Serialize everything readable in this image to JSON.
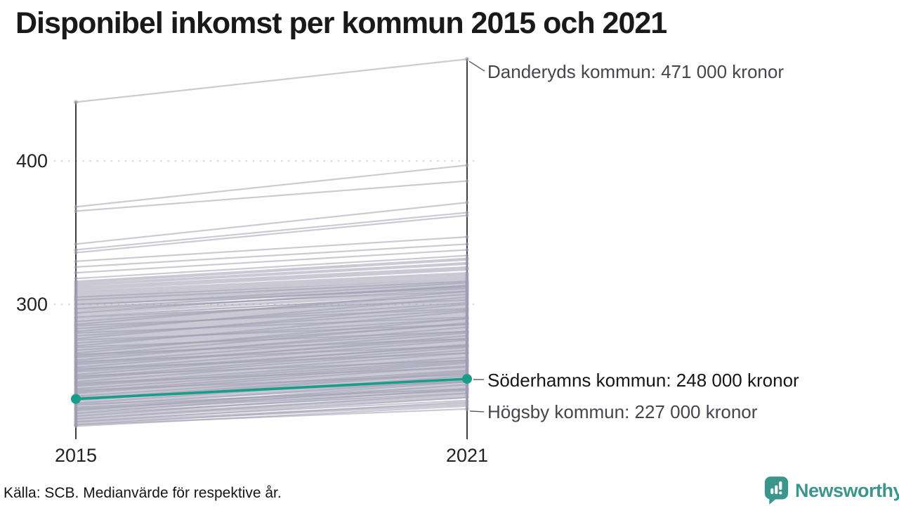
{
  "title": "Disponibel inkomst per kommun 2015 och 2021",
  "footer": {
    "source_text": "Källa: SCB. Medianvärde för respektive år."
  },
  "logo": {
    "name": "Newsworthy",
    "color": "#3a968c"
  },
  "colors": {
    "highlight": "#189e88",
    "background_line": "#a19fb2",
    "axis": "#111111",
    "gridline": "#d9d9de",
    "annotation_gray": "#45454e",
    "annotation_dark": "#15151b"
  },
  "chart_data": {
    "type": "line",
    "subtype": "slopegraph",
    "title": "Disponibel inkomst per kommun 2015 och 2021",
    "unit": "tusen kronor",
    "x": [
      2015,
      2021
    ],
    "x_labels": [
      "2015",
      "2021"
    ],
    "y_ticks": [
      {
        "value": 400,
        "label": "400"
      },
      {
        "value": 300,
        "label": "300"
      }
    ],
    "ylim": [
      215,
      475
    ],
    "grid": "dotted-horizontal",
    "legend_position": "none",
    "highlight_series": {
      "name": "Söderhamns kommun",
      "values": [
        234,
        248
      ],
      "label": "Söderhamns kommun: 248 000 kronor",
      "color": "#189e88"
    },
    "annotated_series": [
      {
        "name": "Danderyds kommun",
        "values": [
          441,
          471
        ],
        "label": "Danderyds kommun: 471 000 kronor"
      },
      {
        "name": "Högsby kommun",
        "values": [
          216,
          227
        ],
        "label": "Högsby kommun: 227 000 kronor"
      }
    ],
    "background_series": [
      [
        368,
        397
      ],
      [
        365,
        386
      ],
      [
        342,
        371
      ],
      [
        338,
        364
      ],
      [
        336,
        362
      ],
      [
        330,
        347
      ],
      [
        326,
        342
      ],
      [
        322,
        338
      ],
      [
        318,
        334
      ],
      [
        316,
        332
      ],
      [
        315,
        331
      ],
      [
        314,
        329
      ],
      [
        313,
        328
      ],
      [
        312,
        326
      ],
      [
        311,
        325
      ],
      [
        310,
        324
      ],
      [
        309,
        322
      ],
      [
        308,
        321
      ],
      [
        307,
        320
      ],
      [
        306,
        319
      ],
      [
        305,
        318
      ],
      [
        305,
        317
      ],
      [
        304,
        316
      ],
      [
        303,
        316
      ],
      [
        303,
        315
      ],
      [
        302,
        314
      ],
      [
        301,
        313
      ],
      [
        300,
        312
      ],
      [
        300,
        311
      ],
      [
        299,
        315
      ],
      [
        298,
        312
      ],
      [
        297,
        313
      ],
      [
        296,
        310
      ],
      [
        295,
        311
      ],
      [
        294,
        309
      ],
      [
        293,
        308
      ],
      [
        292,
        306
      ],
      [
        291,
        307
      ],
      [
        290,
        305
      ],
      [
        289,
        304
      ],
      [
        288,
        303
      ],
      [
        287,
        302
      ],
      [
        286,
        301
      ],
      [
        285,
        300
      ],
      [
        284,
        299
      ],
      [
        283,
        298
      ],
      [
        282,
        297
      ],
      [
        281,
        296
      ],
      [
        280,
        295
      ],
      [
        279,
        294
      ],
      [
        278,
        293
      ],
      [
        277,
        292
      ],
      [
        276,
        291
      ],
      [
        275,
        290
      ],
      [
        274,
        289
      ],
      [
        273,
        288
      ],
      [
        272,
        287
      ],
      [
        271,
        286
      ],
      [
        270,
        285
      ],
      [
        269,
        284
      ],
      [
        268,
        283
      ],
      [
        267,
        282
      ],
      [
        266,
        281
      ],
      [
        265,
        280
      ],
      [
        264,
        279
      ],
      [
        263,
        278
      ],
      [
        262,
        277
      ],
      [
        261,
        276
      ],
      [
        260,
        275
      ],
      [
        259,
        274
      ],
      [
        258,
        273
      ],
      [
        257,
        272
      ],
      [
        256,
        271
      ],
      [
        255,
        270
      ],
      [
        254,
        269
      ],
      [
        253,
        268
      ],
      [
        252,
        267
      ],
      [
        251,
        266
      ],
      [
        250,
        265
      ],
      [
        249,
        264
      ],
      [
        248,
        263
      ],
      [
        247,
        262
      ],
      [
        246,
        261
      ],
      [
        245,
        260
      ],
      [
        244,
        259
      ],
      [
        243,
        258
      ],
      [
        242,
        257
      ],
      [
        241,
        256
      ],
      [
        240,
        255
      ],
      [
        239,
        254
      ],
      [
        238,
        253
      ],
      [
        237,
        252
      ],
      [
        236,
        251
      ],
      [
        235,
        250
      ],
      [
        234,
        249
      ],
      [
        233,
        248
      ],
      [
        232,
        247
      ],
      [
        231,
        246
      ],
      [
        230,
        245
      ],
      [
        297,
        309
      ],
      [
        294,
        313
      ],
      [
        291,
        303
      ],
      [
        288,
        307
      ],
      [
        285,
        297
      ],
      [
        283,
        301
      ],
      [
        280,
        291
      ],
      [
        278,
        296
      ],
      [
        275,
        286
      ],
      [
        273,
        290
      ],
      [
        270,
        281
      ],
      [
        268,
        286
      ],
      [
        265,
        276
      ],
      [
        263,
        281
      ],
      [
        260,
        271
      ],
      [
        258,
        276
      ],
      [
        255,
        266
      ],
      [
        253,
        271
      ],
      [
        250,
        261
      ],
      [
        248,
        268
      ],
      [
        245,
        256
      ],
      [
        243,
        261
      ],
      [
        240,
        251
      ],
      [
        238,
        257
      ],
      [
        235,
        246
      ],
      [
        233,
        252
      ],
      [
        230,
        241
      ],
      [
        228,
        243
      ],
      [
        227,
        241
      ],
      [
        226,
        240
      ],
      [
        229,
        247
      ],
      [
        231,
        250
      ],
      [
        236,
        254
      ],
      [
        241,
        260
      ],
      [
        246,
        266
      ],
      [
        251,
        272
      ],
      [
        256,
        278
      ],
      [
        261,
        284
      ],
      [
        266,
        290
      ],
      [
        271,
        295
      ],
      [
        276,
        300
      ],
      [
        281,
        305
      ],
      [
        286,
        309
      ],
      [
        244,
        263
      ],
      [
        239,
        259
      ],
      [
        234,
        253
      ],
      [
        249,
        270
      ],
      [
        254,
        275
      ],
      [
        259,
        280
      ],
      [
        264,
        287
      ],
      [
        228,
        244
      ],
      [
        227,
        242
      ],
      [
        225,
        240
      ],
      [
        224,
        238
      ],
      [
        223,
        239
      ],
      [
        222,
        237
      ],
      [
        221,
        236
      ],
      [
        220,
        235
      ],
      [
        219,
        233
      ],
      [
        218,
        231
      ],
      [
        217,
        230
      ],
      [
        215,
        229
      ],
      [
        216,
        232
      ],
      [
        218,
        235
      ],
      [
        220,
        238
      ],
      [
        222,
        241
      ],
      [
        224,
        244
      ],
      [
        226,
        246
      ]
    ]
  }
}
